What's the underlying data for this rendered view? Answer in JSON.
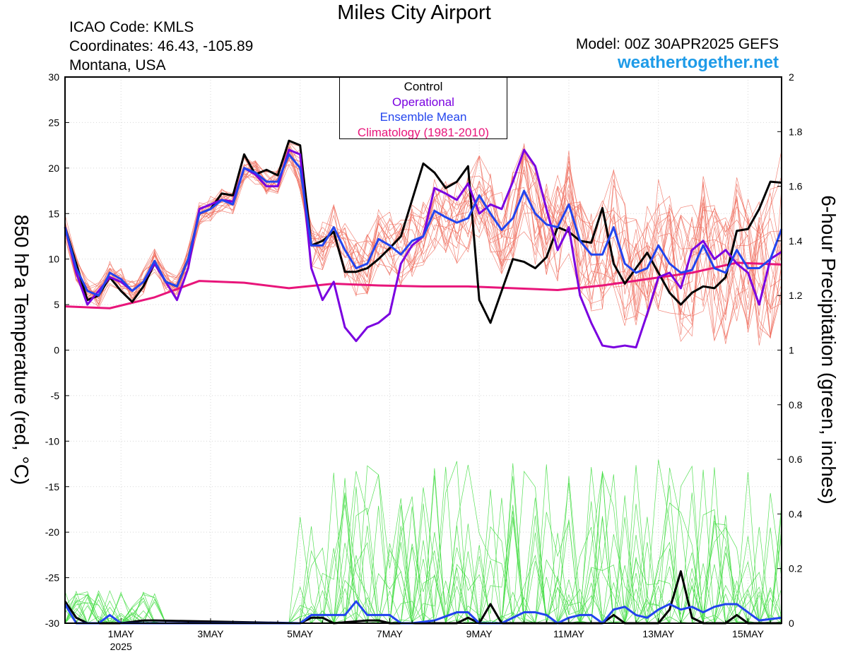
{
  "header": {
    "title": "Miles City Airport",
    "icao": "ICAO Code: KMLS",
    "coordinates": "Coordinates: 46.43, -105.89",
    "location": "Montana, USA",
    "model": "Model: 00Z 30APR2025 GEFS",
    "website": "weathertogether.net"
  },
  "axes": {
    "left_label": "850 hPa Temperature (red, °C)",
    "right_label": "6-hour Precipitation (green, inches)"
  },
  "legend": {
    "control": "Control",
    "operational": "Operational",
    "ensemble_mean": "Ensemble Mean",
    "climatology": "Climatology (1981-2010)"
  },
  "colors": {
    "control": "#000000",
    "operational": "#7a00e0",
    "ensemble_mean": "#2244ee",
    "climatology": "#e8157a",
    "members_temp": "#f07060",
    "members_precip": "#44dd44"
  },
  "chart_data": {
    "type": "line",
    "title": "Miles City Airport",
    "xlabel": "",
    "ylabel": "850 hPa Temperature (red, °C)",
    "y2label": "6-hour Precipitation (green, inches)",
    "ylim": [
      -30,
      30
    ],
    "y2lim": [
      0,
      2
    ],
    "y_ticks": [
      30,
      25,
      20,
      15,
      10,
      5,
      0,
      -5,
      -10,
      -15,
      -20,
      -25,
      -30
    ],
    "y2_ticks": [
      "2",
      "1.8",
      "1.6",
      "1.4",
      "1.2",
      "1",
      "0.8",
      "0.6",
      "0.4",
      "0.2",
      "0"
    ],
    "x_range": [
      -0.75,
      15.25
    ],
    "x_ticks": [
      {
        "x": 0.5,
        "label": "1MAY",
        "sub": "2025"
      },
      {
        "x": 2.5,
        "label": "3MAY",
        "sub": ""
      },
      {
        "x": 4.5,
        "label": "5MAY",
        "sub": ""
      },
      {
        "x": 6.5,
        "label": "7MAY",
        "sub": ""
      },
      {
        "x": 8.5,
        "label": "9MAY",
        "sub": ""
      },
      {
        "x": 10.5,
        "label": "11MAY",
        "sub": ""
      },
      {
        "x": 12.5,
        "label": "13MAY",
        "sub": ""
      },
      {
        "x": 14.5,
        "label": "15MAY",
        "sub": ""
      }
    ],
    "grid": true,
    "series": [
      {
        "name": "Control",
        "axis": "temp",
        "points": [
          [
            -0.75,
            13.5
          ],
          [
            -0.5,
            9.5
          ],
          [
            -0.25,
            5.5
          ],
          [
            0,
            6
          ],
          [
            0.25,
            8
          ],
          [
            0.5,
            6.5
          ],
          [
            0.75,
            5.3
          ],
          [
            1,
            7
          ],
          [
            1.25,
            9.5
          ],
          [
            1.5,
            7.5
          ],
          [
            1.75,
            7
          ],
          [
            2,
            10
          ],
          [
            2.25,
            15
          ],
          [
            2.5,
            15.5
          ],
          [
            2.75,
            17.2
          ],
          [
            3,
            17
          ],
          [
            3.25,
            21.5
          ],
          [
            3.5,
            19.3
          ],
          [
            3.75,
            19.8
          ],
          [
            4,
            19.2
          ],
          [
            4.25,
            23
          ],
          [
            4.5,
            22.5
          ],
          [
            4.75,
            11.5
          ],
          [
            5,
            12
          ],
          [
            5.25,
            13
          ],
          [
            5.5,
            8.6
          ],
          [
            5.75,
            8.6
          ],
          [
            6,
            9
          ],
          [
            6.25,
            10
          ],
          [
            6.5,
            11.2
          ],
          [
            6.75,
            12.5
          ],
          [
            7,
            16.5
          ],
          [
            7.25,
            20.5
          ],
          [
            7.5,
            19.5
          ],
          [
            7.75,
            17.8
          ],
          [
            8,
            18.5
          ],
          [
            8.25,
            20.2
          ],
          [
            8.5,
            5.5
          ],
          [
            8.75,
            3
          ],
          [
            9,
            6.5
          ],
          [
            9.25,
            10
          ],
          [
            9.5,
            9.7
          ],
          [
            9.75,
            9
          ],
          [
            10,
            10.2
          ],
          [
            10.25,
            13.5
          ],
          [
            10.5,
            13
          ],
          [
            10.75,
            12
          ],
          [
            11,
            11.8
          ],
          [
            11.25,
            15.6
          ],
          [
            11.5,
            9.5
          ],
          [
            11.75,
            7.3
          ],
          [
            12,
            9
          ],
          [
            12.25,
            10.7
          ],
          [
            12.5,
            8.5
          ],
          [
            12.75,
            6.3
          ],
          [
            13,
            5
          ],
          [
            13.25,
            6.3
          ],
          [
            13.5,
            7
          ],
          [
            13.75,
            6.8
          ],
          [
            14,
            8
          ],
          [
            14.25,
            13.1
          ],
          [
            14.5,
            13.3
          ],
          [
            14.75,
            15.5
          ],
          [
            15,
            18.5
          ],
          [
            15.25,
            18.4
          ]
        ]
      },
      {
        "name": "Operational",
        "axis": "temp",
        "points": [
          [
            -0.75,
            13.5
          ],
          [
            -0.5,
            8.5
          ],
          [
            -0.25,
            5
          ],
          [
            0,
            6.5
          ],
          [
            0.25,
            8
          ],
          [
            0.5,
            7.5
          ],
          [
            0.75,
            6.5
          ],
          [
            1,
            7.5
          ],
          [
            1.25,
            9.5
          ],
          [
            1.5,
            7.5
          ],
          [
            1.75,
            5.5
          ],
          [
            2,
            9
          ],
          [
            2.25,
            15.5
          ],
          [
            2.5,
            16
          ],
          [
            2.75,
            16.5
          ],
          [
            3,
            16.3
          ],
          [
            3.25,
            20
          ],
          [
            3.5,
            19.3
          ],
          [
            3.75,
            18
          ],
          [
            4,
            18
          ],
          [
            4.25,
            22
          ],
          [
            4.5,
            21.5
          ],
          [
            4.75,
            9
          ],
          [
            5,
            5.5
          ],
          [
            5.25,
            7.5
          ],
          [
            5.5,
            2.5
          ],
          [
            5.75,
            1
          ],
          [
            6,
            2.5
          ],
          [
            6.25,
            3
          ],
          [
            6.5,
            4
          ],
          [
            6.75,
            9.5
          ],
          [
            7,
            11.5
          ],
          [
            7.25,
            12.5
          ],
          [
            7.5,
            17.8
          ],
          [
            7.75,
            17.2
          ],
          [
            8,
            16.5
          ],
          [
            8.25,
            18.3
          ],
          [
            8.5,
            15
          ],
          [
            8.75,
            16
          ],
          [
            9,
            15.5
          ],
          [
            9.25,
            18.5
          ],
          [
            9.5,
            22
          ],
          [
            9.75,
            20.2
          ],
          [
            10,
            15.5
          ],
          [
            10.25,
            11
          ],
          [
            10.5,
            13.5
          ],
          [
            10.75,
            6
          ],
          [
            11,
            3
          ],
          [
            11.25,
            0.5
          ],
          [
            11.5,
            0.3
          ],
          [
            11.75,
            0.5
          ],
          [
            12,
            0.3
          ],
          [
            12.25,
            4
          ],
          [
            12.5,
            8
          ],
          [
            12.75,
            8.5
          ],
          [
            13,
            6.8
          ],
          [
            13.25,
            11
          ],
          [
            13.5,
            12
          ],
          [
            13.75,
            10
          ],
          [
            14,
            11
          ],
          [
            14.25,
            9.5
          ],
          [
            14.5,
            8.5
          ],
          [
            14.75,
            5
          ],
          [
            15,
            10
          ],
          [
            15.25,
            10.8
          ]
        ]
      },
      {
        "name": "Ensemble Mean",
        "axis": "temp",
        "points": [
          [
            -0.75,
            13.5
          ],
          [
            -0.5,
            9
          ],
          [
            -0.25,
            6.5
          ],
          [
            0,
            6
          ],
          [
            0.25,
            8.5
          ],
          [
            0.5,
            7.8
          ],
          [
            0.75,
            6.5
          ],
          [
            1,
            7.5
          ],
          [
            1.25,
            9.8
          ],
          [
            1.5,
            7.5
          ],
          [
            1.75,
            7
          ],
          [
            2,
            10
          ],
          [
            2.25,
            15
          ],
          [
            2.5,
            15.5
          ],
          [
            2.75,
            16.5
          ],
          [
            3,
            16
          ],
          [
            3.25,
            20
          ],
          [
            3.5,
            19.5
          ],
          [
            3.75,
            18.5
          ],
          [
            4,
            18.5
          ],
          [
            4.25,
            21.5
          ],
          [
            4.5,
            20
          ],
          [
            4.75,
            11.5
          ],
          [
            5,
            11.5
          ],
          [
            5.25,
            13.5
          ],
          [
            5.5,
            11
          ],
          [
            5.75,
            9
          ],
          [
            6,
            9.5
          ],
          [
            6.25,
            12.2
          ],
          [
            6.5,
            11.5
          ],
          [
            6.75,
            10.5
          ],
          [
            7,
            12
          ],
          [
            7.25,
            12.5
          ],
          [
            7.5,
            15.3
          ],
          [
            7.75,
            14.6
          ],
          [
            8,
            14
          ],
          [
            8.25,
            14.5
          ],
          [
            8.5,
            17
          ],
          [
            8.75,
            15
          ],
          [
            9,
            13.2
          ],
          [
            9.25,
            14.5
          ],
          [
            9.5,
            17.5
          ],
          [
            9.75,
            15
          ],
          [
            10,
            13.8
          ],
          [
            10.25,
            13.5
          ],
          [
            10.5,
            16
          ],
          [
            10.75,
            12
          ],
          [
            11,
            10.5
          ],
          [
            11.25,
            10.5
          ],
          [
            11.5,
            13.5
          ],
          [
            11.75,
            9.5
          ],
          [
            12,
            8.5
          ],
          [
            12.25,
            9
          ],
          [
            12.5,
            11.5
          ],
          [
            12.75,
            9.5
          ],
          [
            13,
            8.5
          ],
          [
            13.25,
            8.8
          ],
          [
            13.5,
            11.5
          ],
          [
            13.75,
            9
          ],
          [
            14,
            8.5
          ],
          [
            14.25,
            11
          ],
          [
            14.5,
            9
          ],
          [
            14.75,
            9
          ],
          [
            15,
            10
          ],
          [
            15.25,
            13.3
          ]
        ]
      },
      {
        "name": "Climatology (1981-2010)",
        "axis": "temp",
        "points": [
          [
            -0.75,
            4.8
          ],
          [
            0.25,
            4.6
          ],
          [
            1.25,
            5.8
          ],
          [
            2.25,
            7.6
          ],
          [
            3.25,
            7.4
          ],
          [
            4.25,
            6.8
          ],
          [
            5.25,
            7.3
          ],
          [
            6.25,
            7.1
          ],
          [
            7.25,
            7
          ],
          [
            8.25,
            7
          ],
          [
            9.25,
            6.8
          ],
          [
            10.25,
            6.6
          ],
          [
            11.25,
            7.1
          ],
          [
            12.25,
            7.8
          ],
          [
            13.25,
            8.5
          ],
          [
            14.25,
            9.6
          ],
          [
            15.25,
            9.4
          ]
        ]
      },
      {
        "name": "Control",
        "axis": "precip",
        "points": [
          [
            -0.75,
            0.08
          ],
          [
            -0.5,
            0.02
          ],
          [
            -0.25,
            0
          ],
          [
            0.5,
            0
          ],
          [
            1,
            0.01
          ],
          [
            1.25,
            0.01
          ],
          [
            4.5,
            0
          ],
          [
            4.75,
            0.02
          ],
          [
            5,
            0.02
          ],
          [
            5.25,
            0
          ],
          [
            6,
            0.01
          ],
          [
            6.25,
            0.01
          ],
          [
            6.5,
            0
          ],
          [
            8,
            0
          ],
          [
            8.25,
            0.02
          ],
          [
            8.5,
            0
          ],
          [
            8.75,
            0.07
          ],
          [
            9,
            0
          ],
          [
            11.25,
            0
          ],
          [
            11.5,
            0.03
          ],
          [
            11.75,
            0
          ],
          [
            12.5,
            0
          ],
          [
            12.75,
            0.05
          ],
          [
            13,
            0.19
          ],
          [
            13.25,
            0.02
          ],
          [
            13.5,
            0
          ],
          [
            14,
            0
          ],
          [
            14.25,
            0.03
          ],
          [
            14.5,
            0
          ],
          [
            15.25,
            0
          ]
        ]
      },
      {
        "name": "Ensemble Mean",
        "axis": "precip",
        "points": [
          [
            -0.75,
            0.07
          ],
          [
            -0.5,
            0
          ],
          [
            0,
            0
          ],
          [
            0.25,
            0.03
          ],
          [
            0.5,
            0
          ],
          [
            1,
            0
          ],
          [
            4.5,
            0
          ],
          [
            4.75,
            0.03
          ],
          [
            5,
            0.03
          ],
          [
            5.5,
            0.03
          ],
          [
            5.75,
            0.08
          ],
          [
            6,
            0.03
          ],
          [
            6.25,
            0.03
          ],
          [
            6.5,
            0.03
          ],
          [
            6.75,
            0
          ],
          [
            7,
            0
          ],
          [
            7.5,
            0.01
          ],
          [
            8,
            0.04
          ],
          [
            8.25,
            0.04
          ],
          [
            8.5,
            0
          ],
          [
            9,
            0
          ],
          [
            9.25,
            0.02
          ],
          [
            9.5,
            0.04
          ],
          [
            9.75,
            0.04
          ],
          [
            10,
            0.03
          ],
          [
            10.25,
            0
          ],
          [
            10.5,
            0.02
          ],
          [
            10.75,
            0.03
          ],
          [
            11,
            0.03
          ],
          [
            11.25,
            0
          ],
          [
            11.5,
            0.05
          ],
          [
            11.75,
            0.06
          ],
          [
            12,
            0.03
          ],
          [
            12.25,
            0.02
          ],
          [
            12.5,
            0.05
          ],
          [
            12.75,
            0.07
          ],
          [
            13,
            0.05
          ],
          [
            13.25,
            0.06
          ],
          [
            13.5,
            0.04
          ],
          [
            13.75,
            0.06
          ],
          [
            14,
            0.07
          ],
          [
            14.25,
            0.07
          ],
          [
            14.5,
            0.04
          ],
          [
            14.75,
            0.01
          ],
          [
            15.25,
            0.02
          ]
        ]
      }
    ]
  }
}
